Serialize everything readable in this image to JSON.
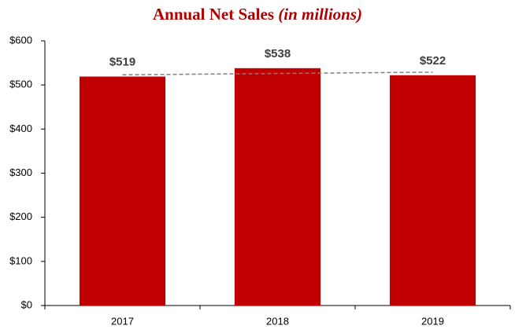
{
  "chart_data": {
    "type": "bar",
    "title": "Annual Net Sales",
    "title_unit": "(in millions)",
    "categories": [
      "2017",
      "2018",
      "2019"
    ],
    "values": [
      519,
      538,
      522
    ],
    "value_labels": [
      "$519",
      "$538",
      "$522"
    ],
    "color": "#c00000",
    "trendline": {
      "values": [
        523,
        529
      ],
      "color": "#7f7f7f"
    },
    "ylim": [
      0,
      600
    ],
    "yticks": [
      {
        "value": 0,
        "label": "$0"
      },
      {
        "value": 100,
        "label": "$100"
      },
      {
        "value": 200,
        "label": "$200"
      },
      {
        "value": 300,
        "label": "$300"
      },
      {
        "value": 400,
        "label": "$400"
      },
      {
        "value": 500,
        "label": "$500"
      },
      {
        "value": 600,
        "label": "$600"
      }
    ],
    "grid": false
  }
}
